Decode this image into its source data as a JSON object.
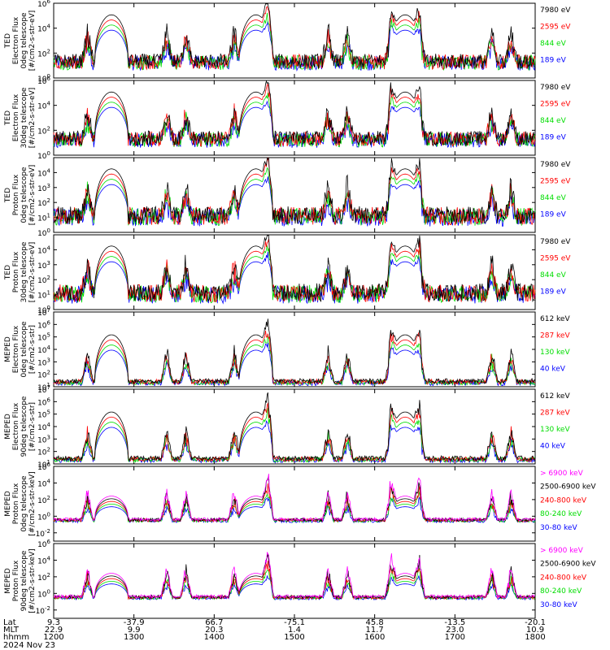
{
  "chart_data": [
    {
      "type": "line",
      "ylabel": [
        "TED",
        "Electron Flux",
        "0deg telescope",
        "[#/cm2-s-str-eV]"
      ],
      "ylim_exp": [
        0,
        6
      ],
      "y_tick_exps": [
        0,
        2,
        4,
        6
      ],
      "series": [
        {
          "name": "7980 eV",
          "color": "#000000"
        },
        {
          "name": "2595 eV",
          "color": "#ff0000"
        },
        {
          "name": "844 eV",
          "color": "#00dd00"
        },
        {
          "name": "189 eV",
          "color": "#0000ff"
        }
      ]
    },
    {
      "type": "line",
      "ylabel": [
        "TED",
        "Electron Flux",
        "30deg telescope",
        "[#/cm2-s-str-eV]"
      ],
      "ylim_exp": [
        0,
        6
      ],
      "y_tick_exps": [
        0,
        2,
        4,
        6
      ],
      "series": [
        {
          "name": "7980 eV",
          "color": "#000000"
        },
        {
          "name": "2595 eV",
          "color": "#ff0000"
        },
        {
          "name": "844 eV",
          "color": "#00dd00"
        },
        {
          "name": "189 eV",
          "color": "#0000ff"
        }
      ]
    },
    {
      "type": "line",
      "ylabel": [
        "TED",
        "Proton Flux",
        "0deg telescope",
        "[#/cm2-s-str-eV]"
      ],
      "ylim_exp": [
        0,
        5
      ],
      "y_tick_exps": [
        0,
        1,
        2,
        3,
        4
      ],
      "series": [
        {
          "name": "7980 eV",
          "color": "#000000"
        },
        {
          "name": "2595 eV",
          "color": "#ff0000"
        },
        {
          "name": "844 eV",
          "color": "#00dd00"
        },
        {
          "name": "189 eV",
          "color": "#0000ff"
        }
      ]
    },
    {
      "type": "line",
      "ylabel": [
        "TED",
        "Proton Flux",
        "30deg telescope",
        "[#/cm2-s-str-eV]"
      ],
      "ylim_exp": [
        0,
        5
      ],
      "y_tick_exps": [
        0,
        1,
        2,
        3,
        4
      ],
      "series": [
        {
          "name": "7980 eV",
          "color": "#000000"
        },
        {
          "name": "2595 eV",
          "color": "#ff0000"
        },
        {
          "name": "844 eV",
          "color": "#00dd00"
        },
        {
          "name": "189 eV",
          "color": "#0000ff"
        }
      ]
    },
    {
      "type": "line",
      "ylabel": [
        "MEPED",
        "Electron Flux",
        "0deg telescope",
        "[#/cm2-s-str]"
      ],
      "ylim_exp": [
        1,
        7
      ],
      "y_tick_exps": [
        1,
        2,
        3,
        4,
        5,
        6,
        7
      ],
      "series": [
        {
          "name": "612 keV",
          "color": "#000000"
        },
        {
          "name": "287 keV",
          "color": "#ff0000"
        },
        {
          "name": "130 keV",
          "color": "#00dd00"
        },
        {
          "name": "40 keV",
          "color": "#0000ff"
        }
      ]
    },
    {
      "type": "line",
      "ylabel": [
        "MEPED",
        "Electron Flux",
        "90deg telescope",
        "[#/cm2-s-str]"
      ],
      "ylim_exp": [
        1,
        7
      ],
      "y_tick_exps": [
        1,
        2,
        3,
        4,
        5,
        6,
        7
      ],
      "series": [
        {
          "name": "612 keV",
          "color": "#000000"
        },
        {
          "name": "287 keV",
          "color": "#ff0000"
        },
        {
          "name": "130 keV",
          "color": "#00dd00"
        },
        {
          "name": "40 keV",
          "color": "#0000ff"
        }
      ]
    },
    {
      "type": "line",
      "ylabel": [
        "MEPED",
        "Proton Flux",
        "0deg telescope",
        "[#/cm2-s-str-keV]"
      ],
      "ylim_exp": [
        -3,
        6
      ],
      "y_tick_exps": [
        -2,
        0,
        2,
        4,
        6
      ],
      "series": [
        {
          "name": "> 6900 keV",
          "color": "#ff00ff"
        },
        {
          "name": "2500-6900 keV",
          "color": "#000000"
        },
        {
          "name": "240-800 keV",
          "color": "#ff0000"
        },
        {
          "name": "80-240 keV",
          "color": "#00dd00"
        },
        {
          "name": "30-80 keV",
          "color": "#0000ff"
        }
      ]
    },
    {
      "type": "line",
      "ylabel": [
        "MEPED",
        "Proton Flux",
        "90deg telescope",
        "[#/cm2-s-str-keV]"
      ],
      "ylim_exp": [
        -3,
        6
      ],
      "y_tick_exps": [
        -2,
        0,
        2,
        4,
        6
      ],
      "series": [
        {
          "name": "> 6900 keV",
          "color": "#ff00ff"
        },
        {
          "name": "2500-6900 keV",
          "color": "#000000"
        },
        {
          "name": "240-800 keV",
          "color": "#ff0000"
        },
        {
          "name": "80-240 keV",
          "color": "#00dd00"
        },
        {
          "name": "30-80 keV",
          "color": "#0000ff"
        }
      ]
    }
  ],
  "footer": {
    "row_labels": [
      "Lat",
      "MLT",
      "hhmm",
      "2024 Nov 23"
    ],
    "columns": [
      {
        "lat": "9.3",
        "mlt": "22.9",
        "hhmm": "1200"
      },
      {
        "lat": "-37.9",
        "mlt": "9.9",
        "hhmm": "1300"
      },
      {
        "lat": "66.7",
        "mlt": "20.3",
        "hhmm": "1400"
      },
      {
        "lat": "-75.1",
        "mlt": "1.4",
        "hhmm": "1500"
      },
      {
        "lat": "45.8",
        "mlt": "11.7",
        "hhmm": "1600"
      },
      {
        "lat": "-13.5",
        "mlt": "23.0",
        "hhmm": "1700"
      },
      {
        "lat": "-20.1",
        "mlt": "10.9",
        "hhmm": "1800"
      }
    ]
  },
  "x_range_hhmm": [
    1200,
    1800
  ]
}
